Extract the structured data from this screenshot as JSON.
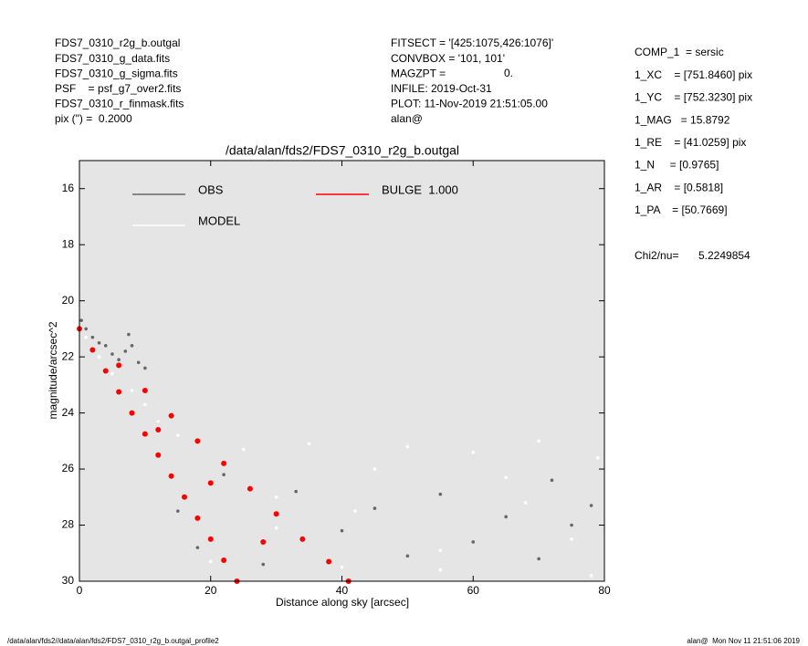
{
  "header": {
    "left": [
      "FDS7_0310_r2g_b.outgal",
      "FDS7_0310_g_data.fits",
      "FDS7_0310_g_sigma.fits",
      "PSF    = psf_g7_over2.fits",
      "FDS7_0310_r_finmask.fits",
      "pix (\") =  0.2000"
    ],
    "middle": [
      "FITSECT = '[425:1075,426:1076]'",
      "CONVBOX = '101, 101'",
      "MAGZPT =",
      "INFILE: 2019-Oct-31",
      "PLOT: 11-Nov-2019 21:51:05.00",
      "alan@"
    ],
    "magzpt_value": "0.",
    "params": [
      "COMP_1  = sersic",
      "1_XC    = [751.8460] pix",
      "1_YC    = [752.3230] pix",
      "1_MAG   = 15.8792",
      "1_RE    = [41.0259] pix",
      "1_N     = [0.9765]",
      "1_AR    = [0.5818]",
      "1_PA    = [50.7669]"
    ],
    "chi2_label": "Chi2/nu=",
    "chi2_value": "5.2249854"
  },
  "footer": {
    "left": "/data/alan/fds2//data/alan/fds2/FDS7_0310_r2g_b.outgal_profile2",
    "right": "alan@  Mon Nov 11 21:51:06 2019"
  },
  "chart_data": {
    "type": "scatter",
    "title": "/data/alan/fds2/FDS7_0310_r2g_b.outgal",
    "x_label": "Distance along sky [arcsec]",
    "y_label": "magnitude/arcsec^2",
    "xlim": [
      0,
      80
    ],
    "xticks": [
      0,
      20,
      40,
      60,
      80
    ],
    "ylim": [
      30,
      15
    ],
    "yticks": [
      16,
      18,
      20,
      22,
      24,
      26,
      28,
      30
    ],
    "series": [
      {
        "name": "OBS",
        "color": "#666666",
        "x": [
          0.3,
          1,
          2,
          3,
          4,
          5,
          6,
          7,
          7.5,
          8,
          9,
          10,
          12,
          15,
          18,
          22,
          28,
          33,
          40,
          45,
          50,
          55,
          60,
          65,
          70,
          72,
          75,
          78
        ],
        "values": [
          20.7,
          21.0,
          21.3,
          21.5,
          21.6,
          21.9,
          22.1,
          21.8,
          21.2,
          21.6,
          22.2,
          22.4,
          24.3,
          27.5,
          28.8,
          26.2,
          29.4,
          26.8,
          28.2,
          27.4,
          29.1,
          26.9,
          28.6,
          27.7,
          29.2,
          26.4,
          28.0,
          27.3
        ]
      },
      {
        "name": "MODEL",
        "color": "#ffffff",
        "x": [
          1,
          3,
          5,
          8,
          10,
          12,
          15,
          18,
          20,
          25,
          30,
          35,
          40,
          45,
          50,
          55,
          60,
          65,
          70,
          75,
          79,
          20,
          30,
          42,
          55,
          68,
          78
        ],
        "values": [
          21.3,
          22.0,
          22.6,
          23.2,
          23.7,
          24.3,
          24.8,
          25.0,
          26.5,
          25.3,
          27.0,
          25.1,
          29.5,
          26.0,
          25.2,
          28.9,
          25.4,
          26.3,
          25.0,
          28.5,
          25.6,
          29.3,
          28.1,
          27.5,
          29.6,
          27.2,
          29.8
        ]
      },
      {
        "name": "BULGE  1.000",
        "color": "#ff0000",
        "x": [
          0,
          2,
          4,
          6,
          8,
          10,
          12,
          14,
          16,
          18,
          20,
          22,
          24,
          6,
          10,
          14,
          18,
          22,
          26,
          30,
          34,
          38,
          41,
          12,
          20,
          28
        ],
        "values": [
          21,
          21.75,
          22.5,
          23.25,
          24,
          24.75,
          25.5,
          26.25,
          27,
          27.75,
          28.5,
          29.25,
          30,
          22.3,
          23.2,
          24.1,
          25.0,
          25.8,
          26.7,
          27.6,
          28.5,
          29.3,
          30,
          24.6,
          26.5,
          28.6
        ]
      }
    ]
  }
}
